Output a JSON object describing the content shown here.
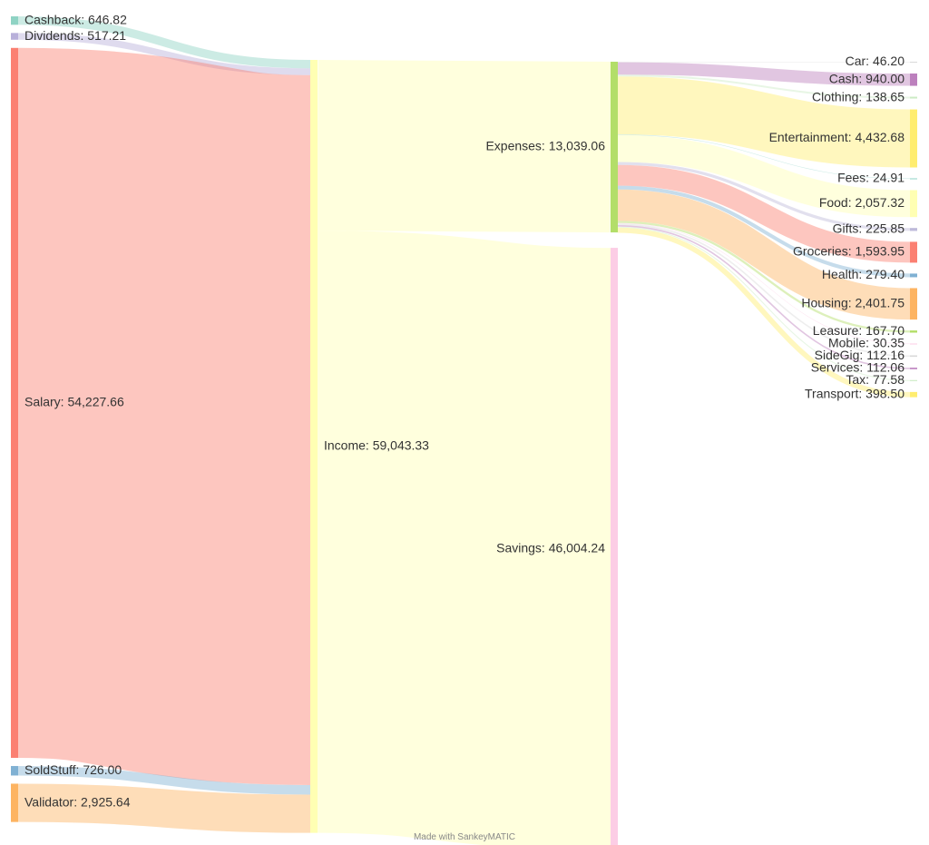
{
  "chart_data": {
    "type": "sankey",
    "title": "",
    "nodes": [
      {
        "id": "cashback",
        "name": "Cashback",
        "value": 646.82,
        "label": "Cashback: 646.82",
        "color": "#8fd3c4"
      },
      {
        "id": "dividends",
        "name": "Dividends",
        "value": 517.21,
        "label": "Dividends: 517.21",
        "color": "#b8b0da"
      },
      {
        "id": "salary",
        "name": "Salary",
        "value": 54227.66,
        "label": "Salary: 54,227.66",
        "color": "#fb8072"
      },
      {
        "id": "soldstuff",
        "name": "SoldStuff",
        "value": 726.0,
        "label": "SoldStuff: 726.00",
        "color": "#80b1d3"
      },
      {
        "id": "validator",
        "name": "Validator",
        "value": 2925.64,
        "label": "Validator: 2,925.64",
        "color": "#fdb462"
      },
      {
        "id": "income",
        "name": "Income",
        "value": 59043.33,
        "label": "Income: 59,043.33",
        "color": "#ffffb3"
      },
      {
        "id": "expenses",
        "name": "Expenses",
        "value": 13039.06,
        "label": "Expenses: 13,039.06",
        "color": "#b3de69"
      },
      {
        "id": "savings",
        "name": "Savings",
        "value": 46004.24,
        "label": "Savings: 46,004.24",
        "color": "#fccde5"
      },
      {
        "id": "car",
        "name": "Car",
        "value": 46.2,
        "label": "Car: 46.20",
        "color": "#d9d9d9"
      },
      {
        "id": "cash",
        "name": "Cash",
        "value": 940.0,
        "label": "Cash: 940.00",
        "color": "#bc80bd"
      },
      {
        "id": "clothing",
        "name": "Clothing",
        "value": 138.65,
        "label": "Clothing: 138.65",
        "color": "#ccebc5"
      },
      {
        "id": "entertainment",
        "name": "Entertainment",
        "value": 4432.68,
        "label": "Entertainment: 4,432.68",
        "color": "#ffed6f"
      },
      {
        "id": "fees",
        "name": "Fees",
        "value": 24.91,
        "label": "Fees: 24.91",
        "color": "#8dd3c7"
      },
      {
        "id": "food",
        "name": "Food",
        "value": 2057.32,
        "label": "Food: 2,057.32",
        "color": "#ffffb3"
      },
      {
        "id": "gifts",
        "name": "Gifts",
        "value": 225.85,
        "label": "Gifts: 225.85",
        "color": "#bebada"
      },
      {
        "id": "groceries",
        "name": "Groceries",
        "value": 1593.95,
        "label": "Groceries: 1,593.95",
        "color": "#fb8072"
      },
      {
        "id": "health",
        "name": "Health",
        "value": 279.4,
        "label": "Health: 279.40",
        "color": "#80b1d3"
      },
      {
        "id": "housing",
        "name": "Housing",
        "value": 2401.75,
        "label": "Housing: 2,401.75",
        "color": "#fdb462"
      },
      {
        "id": "leasure",
        "name": "Leasure",
        "value": 167.7,
        "label": "Leasure: 167.70",
        "color": "#b3de69"
      },
      {
        "id": "mobile",
        "name": "Mobile",
        "value": 30.35,
        "label": "Mobile: 30.35",
        "color": "#fccde5"
      },
      {
        "id": "sidegig",
        "name": "SideGig",
        "value": 112.16,
        "label": "SideGig: 112.16",
        "color": "#d9d9d9"
      },
      {
        "id": "services",
        "name": "Services",
        "value": 112.06,
        "label": "Services: 112.06",
        "color": "#bc80bd"
      },
      {
        "id": "tax",
        "name": "Tax",
        "value": 77.58,
        "label": "Tax: 77.58",
        "color": "#ccebc5"
      },
      {
        "id": "transport",
        "name": "Transport",
        "value": 398.5,
        "label": "Transport: 398.50",
        "color": "#ffed6f"
      }
    ],
    "links": [
      {
        "source": "cashback",
        "target": "income",
        "value": 646.82
      },
      {
        "source": "dividends",
        "target": "income",
        "value": 517.21
      },
      {
        "source": "salary",
        "target": "income",
        "value": 54227.66
      },
      {
        "source": "soldstuff",
        "target": "income",
        "value": 726.0
      },
      {
        "source": "validator",
        "target": "income",
        "value": 2925.64
      },
      {
        "source": "income",
        "target": "expenses",
        "value": 13039.06
      },
      {
        "source": "income",
        "target": "savings",
        "value": 46004.24
      },
      {
        "source": "expenses",
        "target": "car",
        "value": 46.2
      },
      {
        "source": "expenses",
        "target": "cash",
        "value": 940.0
      },
      {
        "source": "expenses",
        "target": "clothing",
        "value": 138.65
      },
      {
        "source": "expenses",
        "target": "entertainment",
        "value": 4432.68
      },
      {
        "source": "expenses",
        "target": "fees",
        "value": 24.91
      },
      {
        "source": "expenses",
        "target": "food",
        "value": 2057.32
      },
      {
        "source": "expenses",
        "target": "gifts",
        "value": 225.85
      },
      {
        "source": "expenses",
        "target": "groceries",
        "value": 1593.95
      },
      {
        "source": "expenses",
        "target": "health",
        "value": 279.4
      },
      {
        "source": "expenses",
        "target": "housing",
        "value": 2401.75
      },
      {
        "source": "expenses",
        "target": "leasure",
        "value": 167.7
      },
      {
        "source": "expenses",
        "target": "mobile",
        "value": 30.35
      },
      {
        "source": "expenses",
        "target": "sidegig",
        "value": 112.16
      },
      {
        "source": "expenses",
        "target": "services",
        "value": 112.06
      },
      {
        "source": "expenses",
        "target": "tax",
        "value": 77.58
      },
      {
        "source": "expenses",
        "target": "transport",
        "value": 398.5
      }
    ]
  },
  "footer": {
    "credit": "Made with SankeyMATIC"
  }
}
